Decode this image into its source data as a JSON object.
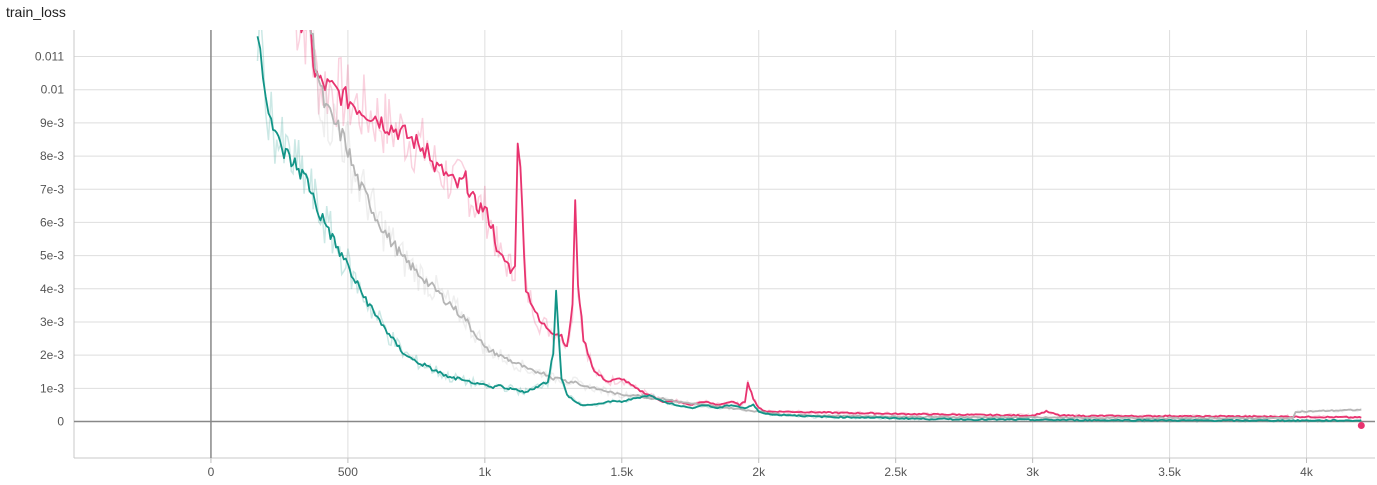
{
  "chart_data": {
    "type": "line",
    "title": "train_loss",
    "xlabel": "",
    "ylabel": "",
    "xlim": [
      -500,
      4250
    ],
    "ylim": [
      -0.0011,
      0.0118
    ],
    "x_ticks": [
      {
        "value": 0,
        "label": "0"
      },
      {
        "value": 500,
        "label": "500"
      },
      {
        "value": 1000,
        "label": "1k"
      },
      {
        "value": 1500,
        "label": "1.5k"
      },
      {
        "value": 2000,
        "label": "2k"
      },
      {
        "value": 2500,
        "label": "2.5k"
      },
      {
        "value": 3000,
        "label": "3k"
      },
      {
        "value": 3500,
        "label": "3.5k"
      },
      {
        "value": 4000,
        "label": "4k"
      }
    ],
    "y_ticks": [
      {
        "value": 0,
        "label": "0"
      },
      {
        "value": 0.001,
        "label": "1e-3"
      },
      {
        "value": 0.002,
        "label": "2e-3"
      },
      {
        "value": 0.003,
        "label": "3e-3"
      },
      {
        "value": 0.004,
        "label": "4e-3"
      },
      {
        "value": 0.005,
        "label": "5e-3"
      },
      {
        "value": 0.006,
        "label": "6e-3"
      },
      {
        "value": 0.007,
        "label": "7e-3"
      },
      {
        "value": 0.008,
        "label": "8e-3"
      },
      {
        "value": 0.009,
        "label": "9e-3"
      },
      {
        "value": 0.01,
        "label": "0.01"
      },
      {
        "value": 0.011,
        "label": "0.011"
      }
    ],
    "grid": true,
    "legend": "none",
    "series": [
      {
        "color": "#e8336f",
        "x": [
          300,
          360,
          380,
          400,
          450,
          500,
          550,
          600,
          630,
          650,
          700,
          750,
          780,
          790,
          800,
          850,
          900,
          930,
          950,
          970,
          1000,
          1030,
          1050,
          1080,
          1100,
          1110,
          1120,
          1130,
          1150,
          1200,
          1250,
          1280,
          1300,
          1320,
          1330,
          1340,
          1360,
          1400,
          1450,
          1500,
          1550,
          1600,
          1650,
          1700,
          1750,
          1800,
          1850,
          1900,
          1930,
          1950,
          1960,
          1980,
          2000,
          2030,
          2100,
          2200,
          2300,
          2400,
          2500,
          2600,
          2700,
          2800,
          2900,
          3000,
          3050,
          3100,
          3200,
          3300,
          3400,
          3500,
          3600,
          3700,
          3800,
          3900,
          4000,
          4100,
          4200
        ],
        "y": [
          0.0125,
          0.0118,
          0.0105,
          0.0102,
          0.01,
          0.0097,
          0.0094,
          0.0092,
          0.009,
          0.0089,
          0.0087,
          0.0084,
          0.0082,
          0.0086,
          0.0078,
          0.0075,
          0.0071,
          0.0073,
          0.0068,
          0.0065,
          0.0064,
          0.0058,
          0.005,
          0.0048,
          0.0045,
          0.0048,
          0.0086,
          0.0075,
          0.004,
          0.003,
          0.0027,
          0.0026,
          0.0022,
          0.0035,
          0.0065,
          0.0042,
          0.0025,
          0.0015,
          0.0012,
          0.0013,
          0.001,
          0.0008,
          0.0006,
          0.0006,
          0.0005,
          0.0006,
          0.0005,
          0.0006,
          0.0005,
          0.0006,
          0.0012,
          0.0007,
          0.0004,
          0.0003,
          0.0003,
          0.00028,
          0.00026,
          0.00025,
          0.00023,
          0.00022,
          0.00021,
          0.0002,
          0.00019,
          0.00018,
          0.0003,
          0.00018,
          0.00017,
          0.00017,
          0.00016,
          0.00017,
          0.00015,
          0.00016,
          0.00015,
          0.00015,
          0.00014,
          0.00013,
          0.00012
        ]
      },
      {
        "color": "#b5b5b5",
        "x": [
          350,
          380,
          400,
          420,
          450,
          480,
          500,
          520,
          550,
          580,
          600,
          630,
          650,
          680,
          700,
          730,
          750,
          780,
          800,
          830,
          850,
          880,
          900,
          930,
          950,
          980,
          1000,
          1030,
          1050,
          1080,
          1100,
          1130,
          1150,
          1180,
          1200,
          1230,
          1250,
          1280,
          1300,
          1330,
          1350,
          1400,
          1450,
          1500,
          1550,
          1600,
          1650,
          1700,
          1800,
          1900,
          2000,
          2100,
          2200,
          2400,
          2600,
          2800,
          3000,
          3200,
          3400,
          3600,
          3800,
          3950,
          3960,
          4000,
          4100,
          4200
        ],
        "y": [
          0.0125,
          0.011,
          0.01,
          0.0094,
          0.009,
          0.0086,
          0.0082,
          0.0076,
          0.007,
          0.0066,
          0.0062,
          0.0058,
          0.0055,
          0.0052,
          0.0049,
          0.0047,
          0.0045,
          0.0043,
          0.0041,
          0.0039,
          0.0037,
          0.0035,
          0.0033,
          0.0031,
          0.0028,
          0.0025,
          0.0022,
          0.0021,
          0.002,
          0.0019,
          0.0018,
          0.0017,
          0.0016,
          0.0015,
          0.0015,
          0.0014,
          0.0013,
          0.0013,
          0.0012,
          0.0012,
          0.0011,
          0.001,
          0.0009,
          0.0008,
          0.0008,
          0.0007,
          0.0007,
          0.0006,
          0.0005,
          0.0004,
          0.0003,
          0.0002,
          0.00018,
          0.00016,
          0.00014,
          0.00013,
          0.00012,
          0.00011,
          0.0001,
          0.0001,
          0.0001,
          0.0001,
          0.0003,
          0.0003,
          0.00033,
          0.00035
        ]
      },
      {
        "color": "#129487",
        "x": [
          170,
          180,
          190,
          200,
          210,
          220,
          240,
          260,
          280,
          300,
          320,
          340,
          360,
          380,
          400,
          430,
          450,
          470,
          500,
          520,
          550,
          580,
          600,
          630,
          650,
          680,
          700,
          730,
          750,
          780,
          800,
          830,
          850,
          880,
          900,
          930,
          950,
          980,
          1000,
          1030,
          1050,
          1080,
          1100,
          1130,
          1150,
          1180,
          1200,
          1230,
          1250,
          1260,
          1270,
          1280,
          1300,
          1330,
          1350,
          1400,
          1450,
          1500,
          1550,
          1600,
          1650,
          1700,
          1750,
          1800,
          1850,
          1900,
          1950,
          1980,
          2000,
          2050,
          2100,
          2200,
          2300,
          2400,
          2500,
          2600,
          2700,
          2800,
          2900,
          3000,
          3100,
          3200,
          3400,
          3600,
          3800,
          4000,
          4200
        ],
        "y": [
          0.012,
          0.0112,
          0.0106,
          0.01,
          0.0096,
          0.0091,
          0.0085,
          0.0082,
          0.008,
          0.0078,
          0.0076,
          0.0074,
          0.0071,
          0.0066,
          0.0062,
          0.0058,
          0.0054,
          0.0051,
          0.0047,
          0.0043,
          0.0039,
          0.0035,
          0.0032,
          0.0029,
          0.0026,
          0.0023,
          0.0021,
          0.0019,
          0.0018,
          0.0017,
          0.0016,
          0.0015,
          0.0014,
          0.0013,
          0.0013,
          0.0012,
          0.0012,
          0.0011,
          0.0011,
          0.001,
          0.0011,
          0.001,
          0.001,
          0.0009,
          0.0009,
          0.001,
          0.0011,
          0.0012,
          0.0021,
          0.004,
          0.0025,
          0.0013,
          0.0008,
          0.0006,
          0.0005,
          0.0005,
          0.0006,
          0.0006,
          0.0007,
          0.0008,
          0.0006,
          0.0005,
          0.0004,
          0.0005,
          0.0004,
          0.0005,
          0.0004,
          0.0005,
          0.0003,
          0.0002,
          0.0002,
          0.00015,
          0.00013,
          0.00012,
          0.0001,
          8e-05,
          7e-05,
          6e-05,
          6e-05,
          5e-05,
          5e-05,
          4e-05,
          4e-05,
          3e-05,
          3e-05,
          3e-05,
          3e-05
        ]
      }
    ]
  }
}
